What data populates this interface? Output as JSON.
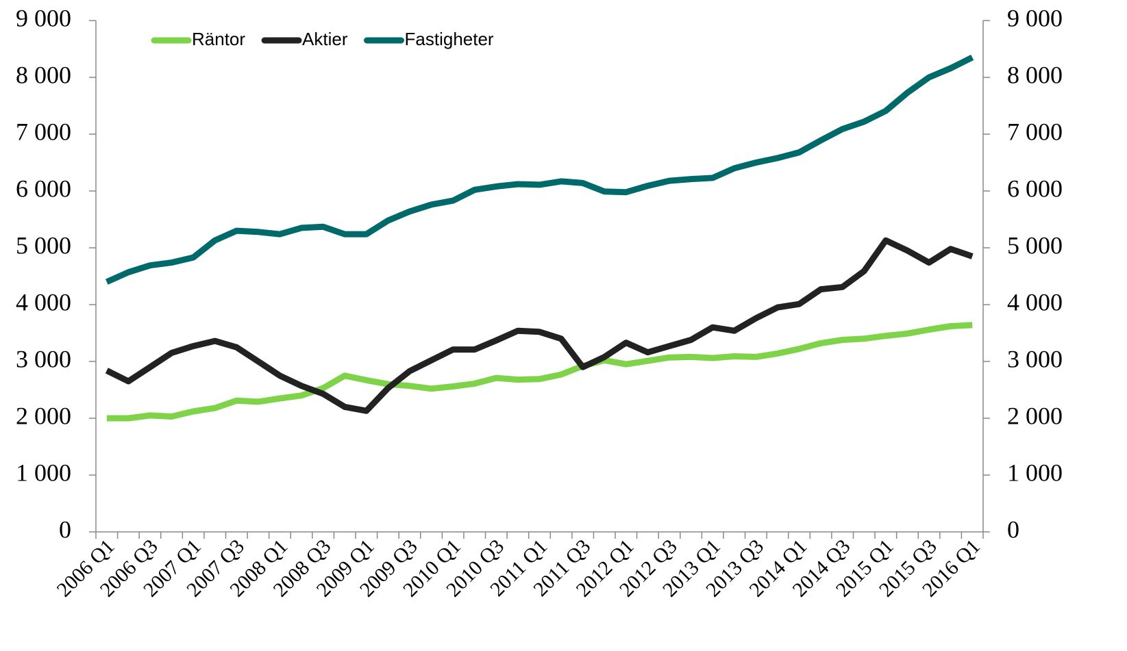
{
  "chart_data": {
    "type": "line",
    "categories": [
      "2006 Q1",
      null,
      "2006 Q3",
      null,
      "2007 Q1",
      null,
      "2007 Q3",
      null,
      "2008 Q1",
      null,
      "2008 Q3",
      null,
      "2009 Q1",
      null,
      "2009 Q3",
      null,
      "2010 Q1",
      null,
      "2010 Q3",
      null,
      "2011 Q1",
      null,
      "2011 Q3",
      null,
      "2012 Q1",
      null,
      "2012 Q3",
      null,
      "2013 Q1",
      null,
      "2013 Q3",
      null,
      "2014 Q1",
      null,
      "2014 Q3",
      null,
      "2015 Q1",
      null,
      "2015 Q3",
      null,
      "2016 Q1"
    ],
    "series": [
      {
        "name": "Räntor",
        "color": "#7ed348",
        "values": [
          2000,
          2000,
          2050,
          2030,
          2120,
          2180,
          2310,
          2290,
          2350,
          2400,
          2530,
          2750,
          2670,
          2600,
          2570,
          2520,
          2560,
          2610,
          2710,
          2680,
          2690,
          2770,
          2920,
          3020,
          2950,
          3010,
          3070,
          3080,
          3060,
          3090,
          3080,
          3140,
          3220,
          3320,
          3380,
          3400,
          3450,
          3490,
          3560,
          3620,
          3640
        ]
      },
      {
        "name": "Aktier",
        "color": "#222222",
        "values": [
          2840,
          2650,
          2900,
          3150,
          3270,
          3360,
          3250,
          3000,
          2750,
          2570,
          2430,
          2200,
          2130,
          2530,
          2830,
          3020,
          3210,
          3210,
          3370,
          3540,
          3520,
          3400,
          2900,
          3080,
          3330,
          3160,
          3270,
          3380,
          3600,
          3540,
          3760,
          3950,
          4010,
          4270,
          4310,
          4590,
          5130,
          4950,
          4740,
          4980,
          4850
        ]
      },
      {
        "name": "Fastigheter",
        "color": "#006a6a",
        "values": [
          4400,
          4570,
          4690,
          4740,
          4830,
          5130,
          5300,
          5280,
          5240,
          5350,
          5370,
          5240,
          5240,
          5480,
          5640,
          5760,
          5830,
          6020,
          6080,
          6120,
          6110,
          6170,
          6140,
          5990,
          5980,
          6090,
          6180,
          6210,
          6230,
          6400,
          6500,
          6580,
          6680,
          6890,
          7090,
          7220,
          7410,
          7730,
          8000,
          8160,
          8350
        ]
      }
    ],
    "ylim": [
      0,
      9000
    ],
    "yticks": [
      0,
      {
        "value": 1000,
        "label": "1 000"
      },
      {
        "value": 2000,
        "label": "2 000"
      },
      {
        "value": 3000,
        "label": "3 000"
      },
      {
        "value": 4000,
        "label": "4 000"
      },
      {
        "value": 5000,
        "label": "5 000"
      },
      {
        "value": 6000,
        "label": "6 000"
      },
      {
        "value": 7000,
        "label": "7 000"
      },
      {
        "value": 8000,
        "label": "8 000"
      },
      {
        "value": 9000,
        "label": "9 000"
      }
    ],
    "y2lim": [
      0,
      9000
    ],
    "y2ticks": [
      0,
      {
        "value": 1000,
        "label": "1 000"
      },
      {
        "value": 2000,
        "label": "2 000"
      },
      {
        "value": 3000,
        "label": "3 000"
      },
      {
        "value": 4000,
        "label": "4 000"
      },
      {
        "value": 5000,
        "label": "5 000"
      },
      {
        "value": 6000,
        "label": "6 000"
      },
      {
        "value": 7000,
        "label": "7 000"
      },
      {
        "value": 8000,
        "label": "8 000"
      },
      {
        "value": 9000,
        "label": "9 000"
      }
    ],
    "legend": "top-left",
    "grid": false
  }
}
